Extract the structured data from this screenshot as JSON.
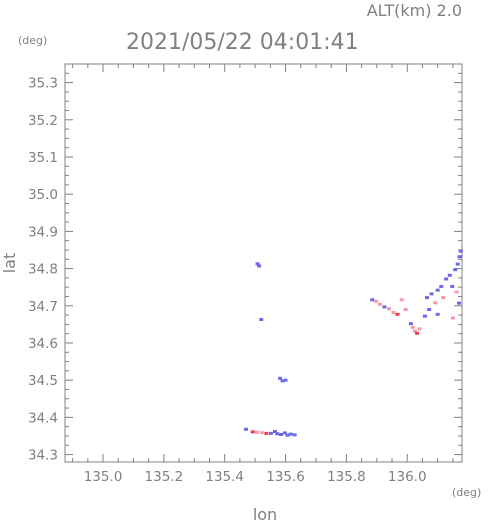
{
  "chart_data": {
    "type": "scatter",
    "title": "2021/05/22 04:01:41",
    "altitude_label": "ALT(km) 2.0",
    "xlabel": "lon",
    "ylabel": "lat",
    "x_unit": "(deg)",
    "y_unit": "(deg)",
    "xlim": [
      134.875,
      136.18
    ],
    "ylim": [
      34.28,
      35.35
    ],
    "x_ticks": [
      135.0,
      135.2,
      135.4,
      135.6,
      135.8,
      136.0
    ],
    "x_tick_labels": [
      "135.0",
      "135.2",
      "135.4",
      "135.6",
      "135.8",
      "136.0"
    ],
    "y_ticks": [
      34.3,
      34.4,
      34.5,
      34.6,
      34.7,
      34.8,
      34.9,
      35.0,
      35.1,
      35.2,
      35.3
    ],
    "y_tick_labels": [
      "34.3",
      "34.4",
      "34.5",
      "34.6",
      "34.7",
      "34.8",
      "34.9",
      "35.0",
      "35.1",
      "35.2",
      "35.3"
    ],
    "grid": false,
    "colors": {
      "axis": "#808080",
      "blue": "#6a6ae6",
      "pink": "#f59aa6",
      "red": "#e04050"
    },
    "points": [
      {
        "x": 135.508,
        "y": 34.813,
        "c": "blue"
      },
      {
        "x": 135.513,
        "y": 34.807,
        "c": "blue"
      },
      {
        "x": 135.52,
        "y": 34.663,
        "c": "blue"
      },
      {
        "x": 135.582,
        "y": 34.505,
        "c": "blue"
      },
      {
        "x": 135.59,
        "y": 34.498,
        "c": "blue"
      },
      {
        "x": 135.6,
        "y": 34.5,
        "c": "blue"
      },
      {
        "x": 135.47,
        "y": 34.368,
        "c": "blue"
      },
      {
        "x": 135.492,
        "y": 34.361,
        "c": "red"
      },
      {
        "x": 135.506,
        "y": 34.36,
        "c": "pink"
      },
      {
        "x": 135.522,
        "y": 34.359,
        "c": "pink"
      },
      {
        "x": 135.537,
        "y": 34.357,
        "c": "red"
      },
      {
        "x": 135.552,
        "y": 34.357,
        "c": "blue"
      },
      {
        "x": 135.565,
        "y": 34.362,
        "c": "blue"
      },
      {
        "x": 135.573,
        "y": 34.356,
        "c": "blue"
      },
      {
        "x": 135.585,
        "y": 34.354,
        "c": "blue"
      },
      {
        "x": 135.598,
        "y": 34.358,
        "c": "blue"
      },
      {
        "x": 135.607,
        "y": 34.352,
        "c": "blue"
      },
      {
        "x": 135.617,
        "y": 34.355,
        "c": "blue"
      },
      {
        "x": 135.63,
        "y": 34.353,
        "c": "blue"
      },
      {
        "x": 135.885,
        "y": 34.716,
        "c": "blue"
      },
      {
        "x": 135.898,
        "y": 34.712,
        "c": "pink"
      },
      {
        "x": 135.91,
        "y": 34.704,
        "c": "pink"
      },
      {
        "x": 135.925,
        "y": 34.697,
        "c": "blue"
      },
      {
        "x": 135.94,
        "y": 34.692,
        "c": "pink"
      },
      {
        "x": 135.955,
        "y": 34.682,
        "c": "pink"
      },
      {
        "x": 135.968,
        "y": 34.677,
        "c": "red"
      },
      {
        "x": 135.982,
        "y": 34.716,
        "c": "pink"
      },
      {
        "x": 135.995,
        "y": 34.69,
        "c": "pink"
      },
      {
        "x": 136.012,
        "y": 34.652,
        "c": "blue"
      },
      {
        "x": 136.018,
        "y": 34.642,
        "c": "pink"
      },
      {
        "x": 136.025,
        "y": 34.632,
        "c": "pink"
      },
      {
        "x": 136.032,
        "y": 34.626,
        "c": "red"
      },
      {
        "x": 136.04,
        "y": 34.638,
        "c": "pink"
      },
      {
        "x": 136.058,
        "y": 34.672,
        "c": "blue"
      },
      {
        "x": 136.072,
        "y": 34.69,
        "c": "blue"
      },
      {
        "x": 136.065,
        "y": 34.722,
        "c": "blue"
      },
      {
        "x": 136.08,
        "y": 34.732,
        "c": "blue"
      },
      {
        "x": 136.092,
        "y": 34.708,
        "c": "pink"
      },
      {
        "x": 136.1,
        "y": 34.742,
        "c": "blue"
      },
      {
        "x": 136.112,
        "y": 34.752,
        "c": "blue"
      },
      {
        "x": 136.118,
        "y": 34.722,
        "c": "pink"
      },
      {
        "x": 136.128,
        "y": 34.772,
        "c": "blue"
      },
      {
        "x": 136.14,
        "y": 34.782,
        "c": "blue"
      },
      {
        "x": 136.148,
        "y": 34.752,
        "c": "blue"
      },
      {
        "x": 136.158,
        "y": 34.797,
        "c": "blue"
      },
      {
        "x": 136.166,
        "y": 34.812,
        "c": "blue"
      },
      {
        "x": 136.172,
        "y": 34.832,
        "c": "blue"
      },
      {
        "x": 136.176,
        "y": 34.847,
        "c": "blue"
      },
      {
        "x": 136.162,
        "y": 34.737,
        "c": "pink"
      },
      {
        "x": 136.17,
        "y": 34.707,
        "c": "blue"
      },
      {
        "x": 136.15,
        "y": 34.667,
        "c": "pink"
      },
      {
        "x": 136.1,
        "y": 34.677,
        "c": "blue"
      }
    ]
  }
}
